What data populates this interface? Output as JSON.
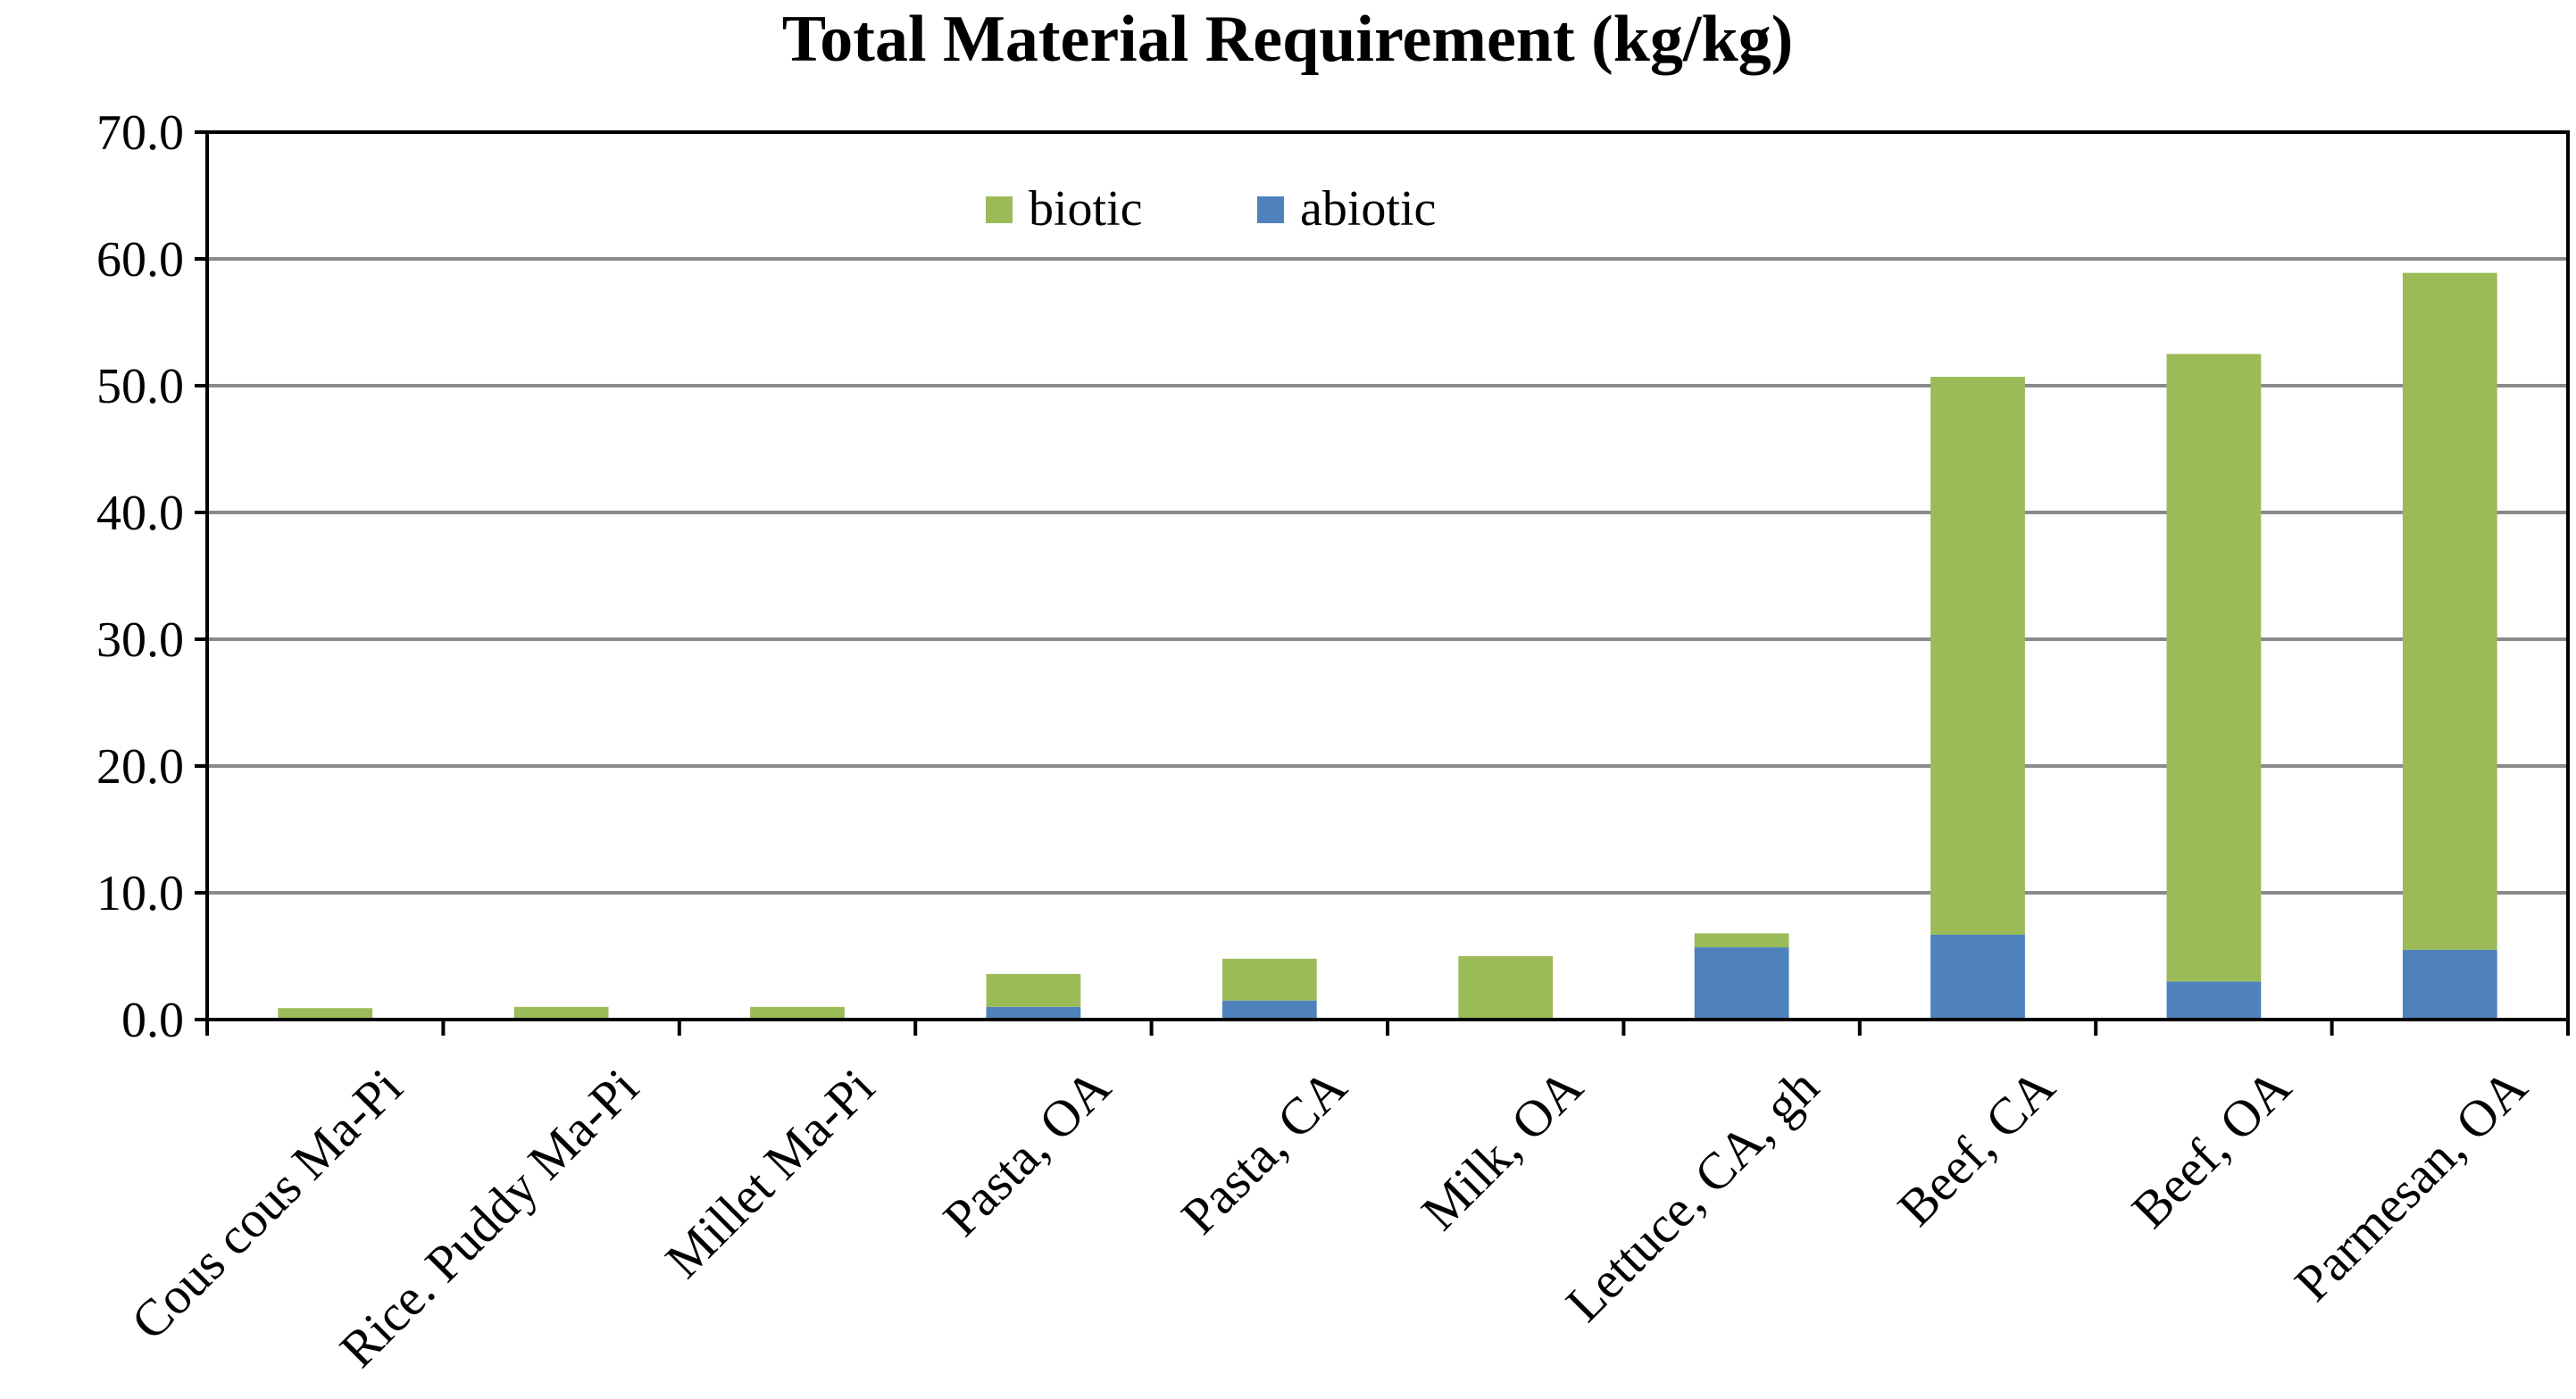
{
  "chart_data": {
    "type": "bar",
    "stacked": true,
    "title": "Total Material Requirement (kg/kg)",
    "xlabel": "",
    "ylabel": "",
    "ylim": [
      0,
      70
    ],
    "yticks": [
      "0.0",
      "10.0",
      "20.0",
      "30.0",
      "40.0",
      "50.0",
      "60.0",
      "70.0"
    ],
    "grid": true,
    "legend_position": "top-center",
    "categories": [
      "Cous cous Ma-Pi",
      "Rice. Puddy Ma-Pi",
      "Millet Ma-Pi",
      "Pasta, OA",
      "Pasta, CA",
      "Milk, OA",
      "Lettuce, CA, gh",
      "Beef, CA",
      "Beef, OA",
      "Parmesan, OA"
    ],
    "series": [
      {
        "name": "abiotic",
        "color": "#4F81BD",
        "values": [
          0.1,
          0.1,
          0.1,
          1.0,
          1.5,
          0.1,
          5.7,
          6.7,
          3.0,
          5.5
        ]
      },
      {
        "name": "biotic",
        "color": "#9BBB59",
        "values": [
          0.8,
          0.9,
          0.9,
          2.6,
          3.3,
          4.9,
          1.1,
          44.0,
          49.5,
          53.4
        ]
      }
    ]
  }
}
